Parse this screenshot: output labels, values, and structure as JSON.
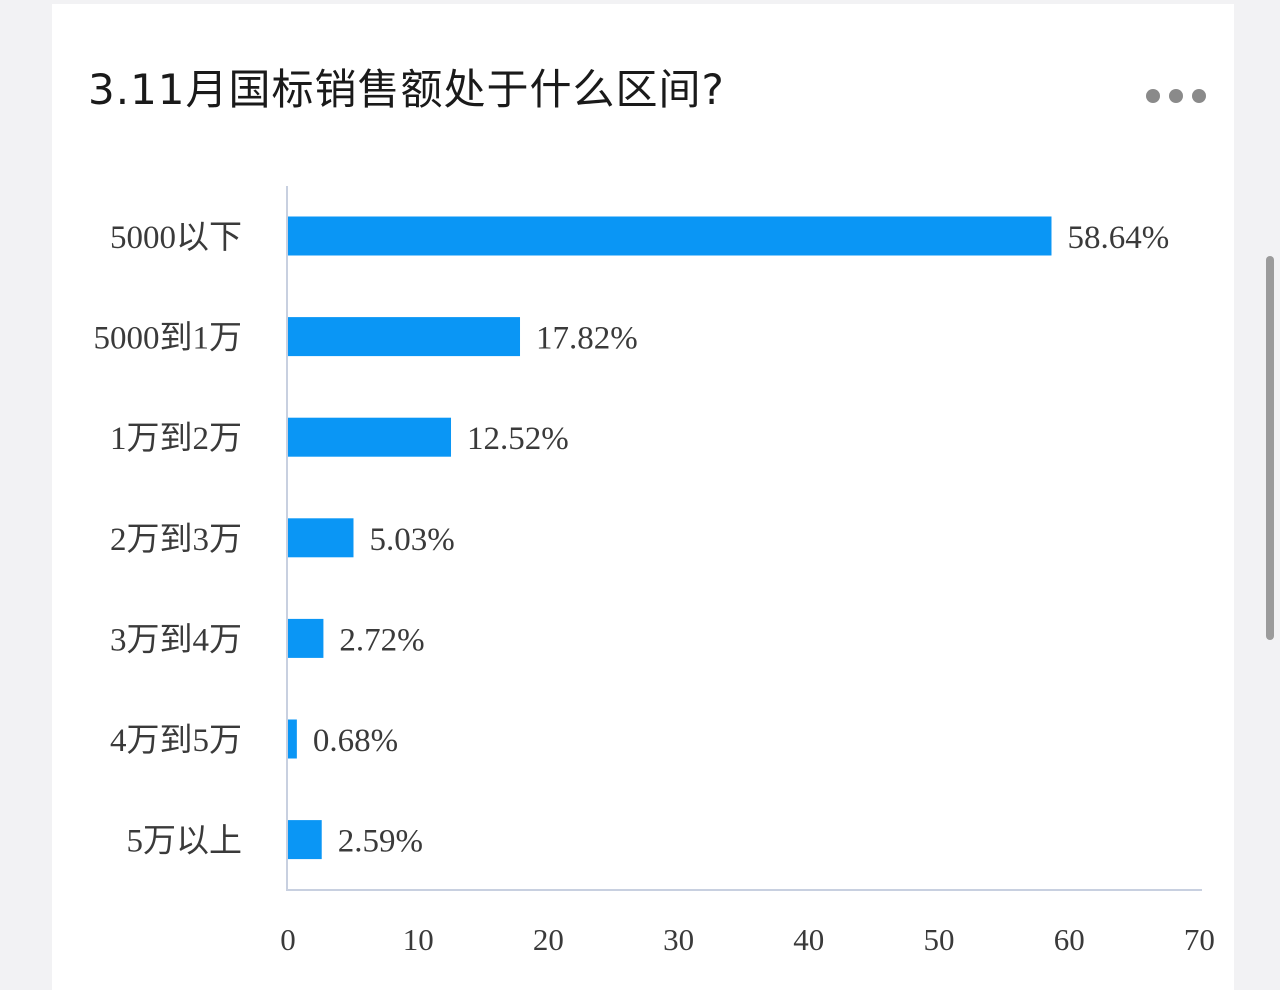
{
  "title": "3.11月国标销售额处于什么区间?",
  "colors": {
    "bar": "#0a96f5",
    "axis": "#c8d0e0"
  },
  "chart_data": {
    "type": "bar",
    "orientation": "horizontal",
    "title": "3.11月国标销售额处于什么区间?",
    "categories": [
      "5000以下",
      "5000到1万",
      "1万到2万",
      "2万到3万",
      "3万到4万",
      "4万到5万",
      "5万以上"
    ],
    "values": [
      58.64,
      17.82,
      12.52,
      5.03,
      2.72,
      0.68,
      2.59
    ],
    "value_labels": [
      "58.64%",
      "17.82%",
      "12.52%",
      "5.03%",
      "2.72%",
      "0.68%",
      "2.59%"
    ],
    "xticks": [
      0,
      10,
      20,
      30,
      40,
      50,
      60,
      70
    ],
    "xlim": [
      0,
      70
    ],
    "grid": false,
    "legend": "none"
  }
}
